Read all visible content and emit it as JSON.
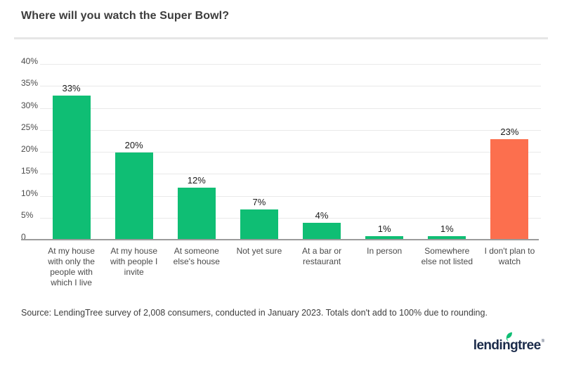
{
  "title": "Where will you watch the Super Bowl?",
  "source": "Source: LendingTree survey of 2,008 consumers, conducted in January 2023. Totals don't add to 100% due to rounding.",
  "logo": {
    "text": "lendingtree",
    "mark": "®",
    "leaf_color": "#0fbe74",
    "text_color": "#1b2b4a"
  },
  "colors": {
    "bar_green": "#0fbe74",
    "bar_orange": "#fc6f4e",
    "gridline": "#e9e9e9",
    "axis": "#9b9b9b",
    "title_text": "#3c3c3c",
    "label_text": "#4a4a4a"
  },
  "chart_data": {
    "type": "bar",
    "title": "Where will you watch the Super Bowl?",
    "categories": [
      "At my house with only the people with which I live",
      "At my house with people I invite",
      "At someone else's house",
      "Not yet sure",
      "At a bar or restaurant",
      "In person",
      "Somewhere else not listed",
      "I don't plan to watch"
    ],
    "values": [
      33,
      20,
      12,
      7,
      4,
      1,
      1,
      23
    ],
    "value_labels": [
      "33%",
      "20%",
      "12%",
      "7%",
      "4%",
      "1%",
      "1%",
      "23%"
    ],
    "bar_colors": [
      "#0fbe74",
      "#0fbe74",
      "#0fbe74",
      "#0fbe74",
      "#0fbe74",
      "#0fbe74",
      "#0fbe74",
      "#fc6f4e"
    ],
    "xlabel": "",
    "ylabel": "",
    "ylim": [
      0,
      40
    ],
    "yticks": [
      {
        "value": 0,
        "label": "0"
      },
      {
        "value": 5,
        "label": "5%"
      },
      {
        "value": 10,
        "label": "10%"
      },
      {
        "value": 15,
        "label": "15%"
      },
      {
        "value": 20,
        "label": "20%"
      },
      {
        "value": 25,
        "label": "25%"
      },
      {
        "value": 30,
        "label": "30%"
      },
      {
        "value": 35,
        "label": "35%"
      },
      {
        "value": 40,
        "label": "40%"
      }
    ],
    "grid": true,
    "legend": "none"
  }
}
